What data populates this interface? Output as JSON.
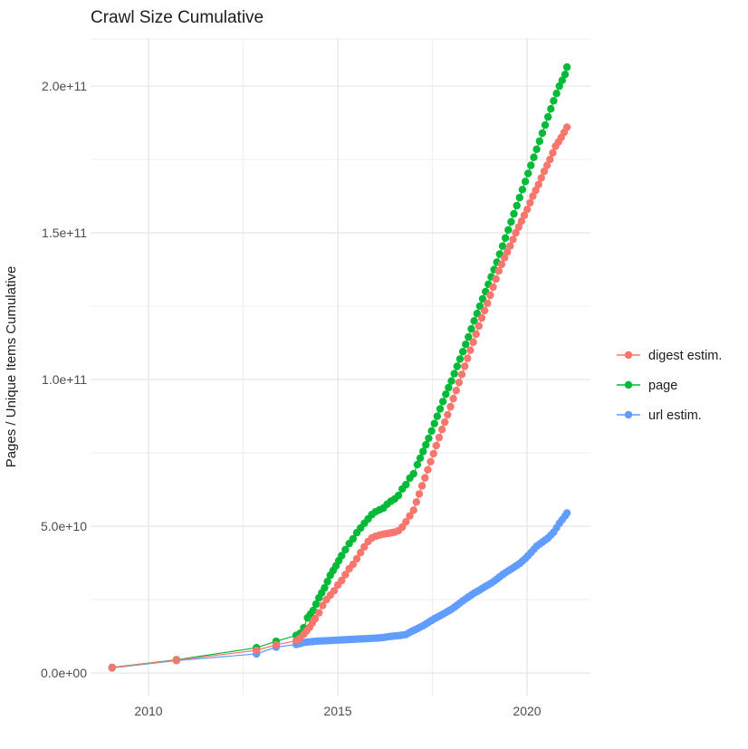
{
  "title": "Crawl Size Cumulative",
  "y_axis": {
    "label": "Pages / Unique Items Cumulative",
    "ticks": [
      {
        "label": "0.0e+00",
        "value_e9": 0
      },
      {
        "label": "5.0e+10",
        "value_e9": 50
      },
      {
        "label": "1.0e+11",
        "value_e9": 100
      },
      {
        "label": "1.5e+11",
        "value_e9": 150
      },
      {
        "label": "2.0e+11",
        "value_e9": 200
      }
    ]
  },
  "x_axis": {
    "ticks": [
      {
        "label": "2010",
        "year": 2010
      },
      {
        "label": "2015",
        "year": 2015
      },
      {
        "label": "2020",
        "year": 2020
      }
    ]
  },
  "legend": {
    "items": [
      {
        "label": "digest estim.",
        "color": "#F8766D"
      },
      {
        "label": "page",
        "color": "#00BA38"
      },
      {
        "label": "url estim.",
        "color": "#619CFF"
      }
    ]
  },
  "colors": {
    "digest": "#F8766D",
    "page": "#00BA38",
    "url": "#619CFF",
    "grid_major": "#e3e3e3",
    "grid_minor": "#efefef",
    "axis_text": "#4d4d4d"
  },
  "chart_data": {
    "type": "line",
    "title": "Crawl Size Cumulative",
    "xlabel": "",
    "ylabel": "Pages / Unique Items Cumulative",
    "units": "y values in billions (1e9); x values in decimal years",
    "xlim": [
      2008.47,
      2021.67
    ],
    "ylim_e9": [
      -7.7,
      216.4
    ],
    "x_major": [
      2010,
      2015,
      2020
    ],
    "x_minor": [
      2012.5,
      2017.5
    ],
    "y_major_e9": [
      0,
      50,
      100,
      150,
      200
    ],
    "y_minor_e9": [
      25,
      75,
      125,
      175,
      216
    ],
    "legend_position": "right",
    "grid": true,
    "series": [
      {
        "name": "url estim.",
        "color": "#619CFF",
        "points": [
          [
            2009.04,
            1.7
          ],
          [
            2010.74,
            4.2
          ],
          [
            2012.85,
            6.5
          ],
          [
            2013.37,
            8.8
          ],
          [
            2013.9,
            9.7
          ],
          [
            2014.0,
            10.0
          ],
          [
            2014.1,
            10.4
          ],
          [
            2014.25,
            10.6
          ],
          [
            2014.4,
            10.8
          ],
          [
            2014.55,
            10.9
          ],
          [
            2014.7,
            11.0
          ],
          [
            2014.85,
            11.1
          ],
          [
            2015.0,
            11.2
          ],
          [
            2015.15,
            11.3
          ],
          [
            2015.3,
            11.4
          ],
          [
            2015.45,
            11.5
          ],
          [
            2015.6,
            11.6
          ],
          [
            2015.75,
            11.7
          ],
          [
            2015.9,
            11.8
          ],
          [
            2016.05,
            11.9
          ],
          [
            2016.2,
            12.1
          ],
          [
            2016.35,
            12.4
          ],
          [
            2016.5,
            12.6
          ],
          [
            2016.65,
            12.8
          ],
          [
            2016.8,
            13.1
          ],
          [
            2016.95,
            14.2
          ],
          [
            2017.1,
            15.1
          ],
          [
            2017.25,
            16.1
          ],
          [
            2017.4,
            17.3
          ],
          [
            2017.55,
            18.5
          ],
          [
            2017.7,
            19.5
          ],
          [
            2017.85,
            20.6
          ],
          [
            2018.0,
            21.7
          ],
          [
            2018.15,
            23.1
          ],
          [
            2018.3,
            24.6
          ],
          [
            2018.45,
            25.9
          ],
          [
            2018.6,
            27.2
          ],
          [
            2018.75,
            28.3
          ],
          [
            2018.9,
            29.5
          ],
          [
            2019.05,
            30.6
          ],
          [
            2019.2,
            32.0
          ],
          [
            2019.35,
            33.5
          ],
          [
            2019.5,
            34.8
          ],
          [
            2019.65,
            36.0
          ],
          [
            2019.8,
            37.3
          ],
          [
            2019.95,
            39.0
          ],
          [
            2020.1,
            41.0
          ],
          [
            2020.25,
            43.2
          ],
          [
            2020.4,
            44.6
          ],
          [
            2020.55,
            46.0
          ],
          [
            2020.7,
            48.0
          ],
          [
            2020.85,
            51.0
          ],
          [
            2021.0,
            53.5
          ],
          [
            2021.05,
            54.5
          ]
        ]
      },
      {
        "name": "page",
        "color": "#00BA38",
        "points": [
          [
            2009.04,
            1.9
          ],
          [
            2010.74,
            4.5
          ],
          [
            2012.85,
            8.6
          ],
          [
            2013.37,
            10.8
          ],
          [
            2013.9,
            12.8
          ],
          [
            2014.0,
            13.5
          ],
          [
            2014.1,
            15.4
          ],
          [
            2014.2,
            18.8
          ],
          [
            2014.35,
            21.3
          ],
          [
            2014.5,
            25.6
          ],
          [
            2014.65,
            29.0
          ],
          [
            2014.8,
            33.3
          ],
          [
            2014.95,
            36.5
          ],
          [
            2015.1,
            40.0
          ],
          [
            2015.2,
            42.0
          ],
          [
            2015.3,
            44.1
          ],
          [
            2015.4,
            45.7
          ],
          [
            2015.5,
            47.8
          ],
          [
            2015.6,
            49.4
          ],
          [
            2015.7,
            51.0
          ],
          [
            2015.8,
            52.5
          ],
          [
            2015.9,
            54.0
          ],
          [
            2016.0,
            55.0
          ],
          [
            2016.1,
            55.6
          ],
          [
            2016.2,
            56.2
          ],
          [
            2016.3,
            57.5
          ],
          [
            2016.4,
            58.5
          ],
          [
            2016.5,
            59.3
          ],
          [
            2016.6,
            60.5
          ],
          [
            2016.7,
            62.7
          ],
          [
            2016.8,
            64.2
          ],
          [
            2016.9,
            66.4
          ],
          [
            2017.0,
            67.9
          ],
          [
            2017.1,
            71.0
          ],
          [
            2017.25,
            75.5
          ],
          [
            2017.4,
            80.0
          ],
          [
            2017.55,
            85.0
          ],
          [
            2017.7,
            90.0
          ],
          [
            2017.85,
            95.0
          ],
          [
            2018.0,
            99.5
          ],
          [
            2018.15,
            104.5
          ],
          [
            2018.3,
            109.5
          ],
          [
            2018.45,
            114.5
          ],
          [
            2018.6,
            120.0
          ],
          [
            2018.75,
            125.0
          ],
          [
            2018.9,
            130.0
          ],
          [
            2019.05,
            135.0
          ],
          [
            2019.2,
            140.0
          ],
          [
            2019.35,
            145.5
          ],
          [
            2019.5,
            151.0
          ],
          [
            2019.65,
            156.5
          ],
          [
            2019.8,
            162.0
          ],
          [
            2019.95,
            167.5
          ],
          [
            2020.1,
            173.0
          ],
          [
            2020.25,
            178.5
          ],
          [
            2020.4,
            184.0
          ],
          [
            2020.55,
            189.5
          ],
          [
            2020.7,
            195.0
          ],
          [
            2020.85,
            200.0
          ],
          [
            2021.0,
            204.0
          ],
          [
            2021.05,
            206.5
          ]
        ]
      },
      {
        "name": "digest estim.",
        "color": "#F8766D",
        "points": [
          [
            2009.04,
            1.85
          ],
          [
            2010.74,
            4.4
          ],
          [
            2012.85,
            7.7
          ],
          [
            2013.37,
            9.6
          ],
          [
            2013.9,
            11.0
          ],
          [
            2014.0,
            11.8
          ],
          [
            2014.1,
            13.2
          ],
          [
            2014.25,
            15.5
          ],
          [
            2014.4,
            18.5
          ],
          [
            2014.5,
            20.5
          ],
          [
            2014.6,
            23.0
          ],
          [
            2014.7,
            25.0
          ],
          [
            2014.8,
            26.5
          ],
          [
            2014.9,
            28.0
          ],
          [
            2015.0,
            30.0
          ],
          [
            2015.1,
            31.5
          ],
          [
            2015.2,
            33.5
          ],
          [
            2015.3,
            35.5
          ],
          [
            2015.4,
            37.0
          ],
          [
            2015.5,
            38.9
          ],
          [
            2015.6,
            41.0
          ],
          [
            2015.7,
            43.0
          ],
          [
            2015.8,
            44.8
          ],
          [
            2015.9,
            46.0
          ],
          [
            2016.0,
            46.6
          ],
          [
            2016.1,
            47.0
          ],
          [
            2016.2,
            47.3
          ],
          [
            2016.35,
            47.6
          ],
          [
            2016.5,
            48.0
          ],
          [
            2016.6,
            48.5
          ],
          [
            2016.7,
            49.7
          ],
          [
            2016.8,
            51.5
          ],
          [
            2016.9,
            53.5
          ],
          [
            2017.0,
            55.5
          ],
          [
            2017.15,
            61.0
          ],
          [
            2017.3,
            66.5
          ],
          [
            2017.45,
            72.0
          ],
          [
            2017.6,
            77.5
          ],
          [
            2017.75,
            83.0
          ],
          [
            2017.9,
            88.0
          ],
          [
            2018.05,
            93.5
          ],
          [
            2018.2,
            99.0
          ],
          [
            2018.35,
            104.5
          ],
          [
            2018.5,
            110.0
          ],
          [
            2018.65,
            115.5
          ],
          [
            2018.8,
            121.0
          ],
          [
            2018.95,
            126.0
          ],
          [
            2019.1,
            131.5
          ],
          [
            2019.25,
            137.0
          ],
          [
            2019.4,
            141.5
          ],
          [
            2019.55,
            145.5
          ],
          [
            2019.7,
            150.0
          ],
          [
            2019.85,
            154.0
          ],
          [
            2020.0,
            158.0
          ],
          [
            2020.15,
            162.5
          ],
          [
            2020.3,
            166.5
          ],
          [
            2020.45,
            171.0
          ],
          [
            2020.6,
            175.0
          ],
          [
            2020.75,
            179.5
          ],
          [
            2020.9,
            182.5
          ],
          [
            2021.05,
            186.0
          ]
        ]
      }
    ]
  }
}
